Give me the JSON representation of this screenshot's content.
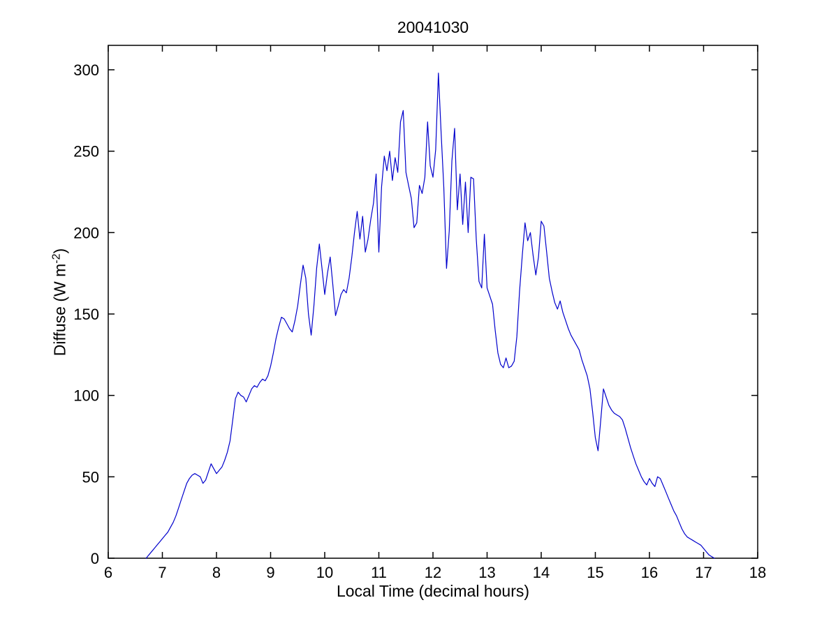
{
  "figure": {
    "background": "#FFFFFF"
  },
  "chart_data": {
    "type": "line",
    "title": "20041030",
    "xlabel": "Local Time (decimal hours)",
    "ylabel": {
      "prefix": "Diffuse (W m",
      "superscript": "-2",
      "suffix": ")"
    },
    "xlim": [
      6,
      18
    ],
    "ylim": [
      0,
      315
    ],
    "xticks": [
      6,
      7,
      8,
      9,
      10,
      11,
      12,
      13,
      14,
      15,
      16,
      17,
      18
    ],
    "yticks": [
      0,
      50,
      100,
      150,
      200,
      250,
      300
    ],
    "grid": false,
    "line_color": "#0000CC",
    "axis_color": "#000000",
    "series": [
      {
        "name": "diffuse",
        "x_start": 6.7,
        "x_step": 0.05,
        "values": [
          0,
          2,
          4,
          6,
          8,
          10,
          12,
          14,
          16,
          19,
          22,
          26,
          31,
          36,
          41,
          46,
          49,
          51,
          52,
          51,
          50,
          46,
          48,
          53,
          58,
          55,
          52,
          54,
          56,
          60,
          65,
          72,
          85,
          98,
          102,
          100,
          99,
          96,
          100,
          104,
          106,
          105,
          108,
          110,
          109,
          112,
          118,
          126,
          135,
          142,
          148,
          147,
          144,
          141,
          139,
          146,
          155,
          168,
          180,
          172,
          150,
          137,
          155,
          178,
          193,
          178,
          162,
          175,
          185,
          168,
          149,
          155,
          162,
          165,
          163,
          172,
          185,
          200,
          213,
          196,
          210,
          188,
          196,
          208,
          218,
          236,
          188,
          228,
          247,
          238,
          250,
          232,
          246,
          237,
          268,
          275,
          237,
          229,
          221,
          203,
          206,
          229,
          224,
          234,
          268,
          241,
          234,
          251,
          298,
          262,
          228,
          178,
          201,
          244,
          264,
          214,
          236,
          205,
          231,
          200,
          234,
          233,
          196,
          170,
          166,
          199,
          166,
          161,
          156,
          140,
          126,
          119,
          117,
          123,
          117,
          118,
          121,
          136,
          164,
          186,
          206,
          195,
          200,
          186,
          174,
          185,
          207,
          204,
          188,
          172,
          164,
          157,
          153,
          158,
          151,
          146,
          141,
          137,
          134,
          131,
          128,
          122,
          117,
          112,
          104,
          90,
          74,
          66,
          85,
          104,
          99,
          94,
          91,
          89,
          88,
          87,
          85,
          80,
          74,
          68,
          63,
          58,
          54,
          50,
          47,
          45,
          49,
          46,
          44,
          50,
          49,
          45,
          41,
          37,
          33,
          29,
          26,
          22,
          18,
          15,
          13,
          12,
          11,
          10,
          9,
          8,
          6,
          4,
          2,
          1,
          0
        ]
      }
    ]
  }
}
